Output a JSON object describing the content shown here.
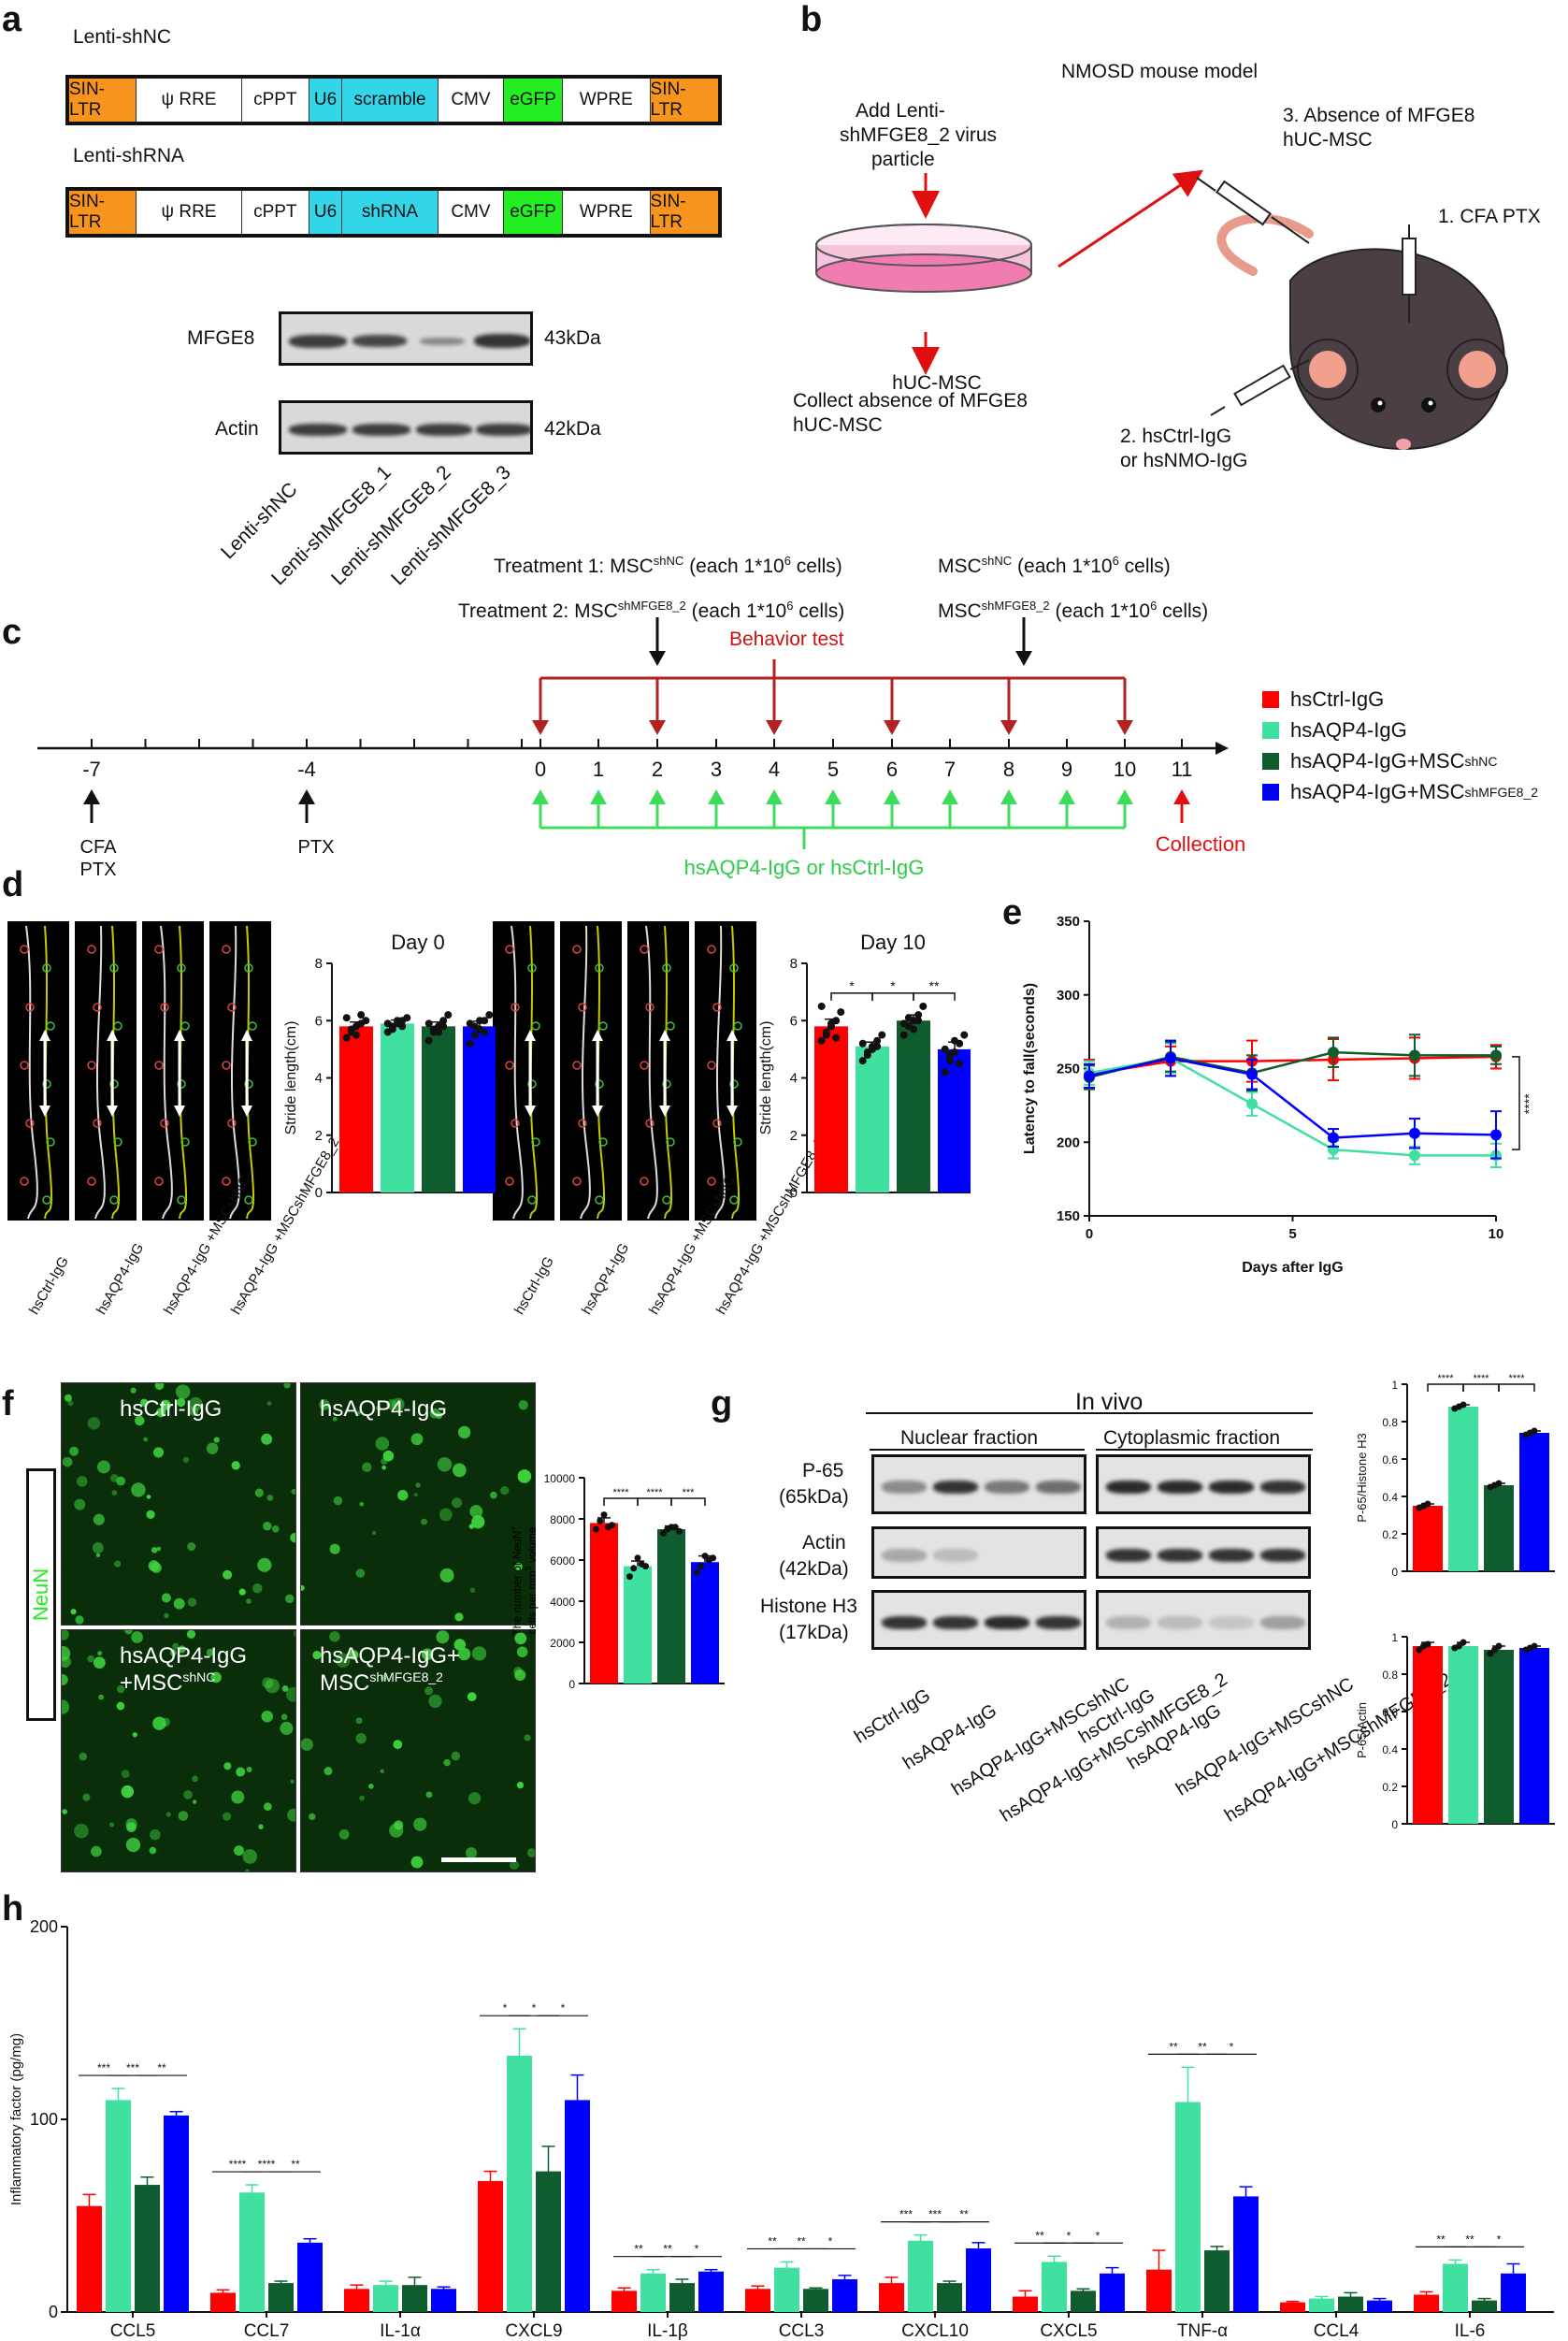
{
  "panels": {
    "a": "a",
    "b": "b",
    "c": "c",
    "d": "d",
    "e": "e",
    "f": "f",
    "g": "g",
    "h": "h"
  },
  "colors": {
    "ctrl": "#ff0000",
    "aqp4": "#40e0a0",
    "msc_nc": "#0f5c2e",
    "msc_sh": "#0000ff",
    "orange": "#f7941d",
    "cyan": "#33d6e8",
    "green": "#22ee22"
  },
  "panel_a": {
    "construct1_title": "Lenti-shNC",
    "construct2_title": "Lenti-shRNA",
    "construct1": [
      "SIN-LTR",
      "ψ RRE",
      "cPPT",
      "U6",
      "scramble",
      "CMV",
      "eGFP",
      "WPRE",
      "SIN-LTR"
    ],
    "construct2": [
      "SIN-LTR",
      "ψ RRE",
      "cPPT",
      "U6",
      "shRNA",
      "CMV",
      "eGFP",
      "WPRE",
      "SIN-LTR"
    ],
    "blot1_label": "MFGE8",
    "blot1_size": "43kDa",
    "blot2_label": "Actin",
    "blot2_size": "42kDa",
    "lanes": [
      "Lenti-shNC",
      "Lenti-shMFGE8_1",
      "Lenti-shMFGE8_2",
      "Lenti-shMFGE8_3"
    ]
  },
  "panel_b": {
    "model_title": "NMOSD mouse model",
    "add_text_1": "Add Lenti-",
    "add_text_2": "shMFGE8_2  virus",
    "add_text_3": "particle",
    "dish_label": "hUC-MSC",
    "collect_1": "Collect absence of MFGE8",
    "collect_2": "hUC-MSC",
    "step3_1": "3. Absence of MFGE8",
    "step3_2": "hUC-MSC",
    "step1": "1. CFA PTX",
    "step2_1": "2. hsCtrl-IgG",
    "step2_2": "or hsNMO-IgG"
  },
  "panel_c": {
    "treat1": "Treatment 1: MSC",
    "treat1_sup": "shNC",
    "treat1_tail": " (each 1*10",
    "treat1_exp": "6",
    "treat1_end": " cells)",
    "treat2": "Treatment 2: MSC",
    "treat2_sup": "shMFGE8_2",
    "treat2_tail": " (each 1*10",
    "treat2_exp": "6",
    "treat2_end": " cells)",
    "right1": "MSC",
    "right1_sup": "shNC",
    "right1_tail": " (each 1*10",
    "right1_exp": "6",
    "right1_end": " cells)",
    "right2": "MSC",
    "right2_sup": "shMFGE8_2",
    "right2_tail": " (each 1*10",
    "right2_exp": "6",
    "right2_end": " cells)",
    "behavior": "Behavior test",
    "ticks": [
      "-7",
      "-4",
      "0",
      "1",
      "2",
      "3",
      "4",
      "5",
      "6",
      "7",
      "8",
      "9",
      "10",
      "11"
    ],
    "cfa1": "CFA",
    "cfa2": "PTX",
    "ptx": "PTX",
    "injection": "hsAQP4-IgG or hsCtrl-IgG",
    "collection": "Collection",
    "legend": [
      {
        "name": "hsCtrl-IgG",
        "sup": "",
        "color": "#ff0000"
      },
      {
        "name": "hsAQP4-IgG",
        "sup": "",
        "color": "#40e0a0"
      },
      {
        "name": "hsAQP4-IgG+MSC",
        "sup": "shNC",
        "color": "#0f5c2e"
      },
      {
        "name": "hsAQP4-IgG+MSC",
        "sup": "shMFGE8_2",
        "color": "#0000ff"
      }
    ]
  },
  "panel_d": {
    "day0_title": "Day 0",
    "day10_title": "Day 10",
    "ylabel": "Stride length(cm)",
    "track_labels": [
      "hsCtrl-IgG",
      "hsAQP4-IgG",
      "hsAQP4-IgG +MSCshNC",
      "hsAQP4-IgG +MSCshMFGE8_2"
    ],
    "sig_day10": [
      "*",
      "*",
      "**"
    ]
  },
  "panel_f": {
    "stain": "NeuN",
    "quadrants": [
      "hsCtrl-IgG",
      "hsAQP4-IgG",
      "hsAQP4-IgG",
      "hsAQP4-IgG+"
    ],
    "quad_sub": [
      "",
      "",
      "+MSC",
      "MSC"
    ],
    "quad_sup": [
      "",
      "",
      "shNC",
      "shMFGE8_2"
    ],
    "ylabel1": "The number of NeuN",
    "ylabel_sup": "+",
    "ylabel2": "cells per mm",
    "ylabel_exp": "3",
    "ylabel3": " volume",
    "sig": [
      "****",
      "****",
      "***"
    ]
  },
  "panel_g": {
    "title": "In vivo",
    "nuclear": "Nuclear fraction",
    "cyto": "Cytoplasmic fraction",
    "rows": [
      {
        "name": "P-65",
        "size": "(65kDa)"
      },
      {
        "name": "Actin",
        "size": "(42kDa)"
      },
      {
        "name": "Histone H3",
        "size": "(17kDa)"
      }
    ],
    "lanes": [
      "hsCtrl-IgG",
      "hsAQP4-IgG",
      "hsAQP4-IgG+MSCshNC",
      "hsAQP4-IgG+MSCshMFGE8_2"
    ],
    "ylabel_top": "P-65/Histone H3",
    "ylabel_bottom": "P-65/Actin",
    "sig": [
      "****",
      "****",
      "****"
    ]
  },
  "chart_data": [
    {
      "id": "d_day0",
      "type": "bar",
      "categories": [
        "hsCtrl-IgG",
        "hsAQP4-IgG",
        "hsAQP4-IgG+MSCshNC",
        "hsAQP4-IgG+MSCshMFGE8_2"
      ],
      "values": [
        5.8,
        5.9,
        5.8,
        5.8
      ],
      "errors": [
        0.15,
        0.12,
        0.15,
        0.18
      ],
      "points": [
        [
          5.4,
          5.6,
          5.8,
          5.9,
          6.0,
          6.1,
          5.7,
          5.5,
          6.2
        ],
        [
          5.6,
          5.8,
          5.9,
          6.0,
          6.1,
          5.9,
          5.7,
          6.0,
          5.8
        ],
        [
          5.3,
          5.6,
          5.8,
          6.0,
          6.2,
          5.9,
          5.7,
          5.6,
          5.8
        ],
        [
          5.2,
          5.5,
          5.7,
          6.0,
          6.2,
          5.9,
          5.8,
          6.0,
          5.6
        ]
      ],
      "title": "Day 0",
      "xlabel": "",
      "ylabel": "Stride length(cm)",
      "ylim": [
        0,
        8
      ],
      "yticks": [
        0,
        2,
        4,
        6,
        8
      ]
    },
    {
      "id": "d_day10",
      "type": "bar",
      "categories": [
        "hsCtrl-IgG",
        "hsAQP4-IgG",
        "hsAQP4-IgG+MSCshNC",
        "hsAQP4-IgG+MSCshMFGE8_2"
      ],
      "values": [
        5.8,
        5.1,
        6.0,
        5.0
      ],
      "errors": [
        0.25,
        0.15,
        0.2,
        0.25
      ],
      "points": [
        [
          5.3,
          5.5,
          5.8,
          6.0,
          6.3,
          6.5,
          5.6,
          5.9,
          5.4
        ],
        [
          4.6,
          4.9,
          5.1,
          5.3,
          5.5,
          5.2,
          4.8,
          5.0,
          5.1
        ],
        [
          5.5,
          5.8,
          6.0,
          6.2,
          6.5,
          5.9,
          6.1,
          5.7,
          6.0
        ],
        [
          4.2,
          4.6,
          4.9,
          5.2,
          5.5,
          5.0,
          4.8,
          5.3,
          4.5
        ]
      ],
      "title": "Day 10",
      "xlabel": "",
      "ylabel": "Stride length(cm)",
      "ylim": [
        0,
        8
      ],
      "yticks": [
        0,
        2,
        4,
        6,
        8
      ],
      "significance": [
        {
          "from": 0,
          "to": 1,
          "label": "*"
        },
        {
          "from": 1,
          "to": 2,
          "label": "*"
        },
        {
          "from": 2,
          "to": 3,
          "label": "**"
        }
      ]
    },
    {
      "id": "e",
      "type": "line",
      "x": [
        0,
        2,
        4,
        6,
        8,
        10
      ],
      "series": [
        {
          "name": "hsCtrl-IgG",
          "color": "#ff0000",
          "values": [
            246,
            255,
            255,
            256,
            257,
            258
          ],
          "errors": [
            10,
            10,
            14,
            14,
            14,
            8
          ]
        },
        {
          "name": "hsAQP4-IgG",
          "color": "#40e0a0",
          "values": [
            247,
            257,
            226,
            195,
            191,
            191
          ],
          "errors": [
            8,
            10,
            8,
            6,
            6,
            8
          ]
        },
        {
          "name": "hsAQP4-IgG+MSCshNC",
          "color": "#0f5c2e",
          "values": [
            244,
            258,
            247,
            261,
            259,
            259
          ],
          "errors": [
            8,
            10,
            12,
            10,
            14,
            6
          ]
        },
        {
          "name": "hsAQP4-IgG+MSCshMFGE8_2",
          "color": "#0000ff",
          "values": [
            245,
            257,
            246,
            203,
            206,
            205
          ],
          "errors": [
            8,
            12,
            10,
            6,
            10,
            16
          ]
        }
      ],
      "xlabel": "Days after IgG",
      "ylabel": "Latency to fall(seconds)",
      "xlim": [
        0,
        10
      ],
      "xticks": [
        0,
        5,
        10
      ],
      "ylim": [
        150,
        350
      ],
      "yticks": [
        150,
        200,
        250,
        300,
        350
      ],
      "annotation": "****"
    },
    {
      "id": "f",
      "type": "bar",
      "categories": [
        "hsCtrl-IgG",
        "hsAQP4-IgG",
        "hsAQP4-IgG+MSCshNC",
        "hsAQP4-IgG+MSCshMFGE8_2"
      ],
      "values": [
        7800,
        5700,
        7500,
        5900
      ],
      "errors": [
        250,
        250,
        150,
        300
      ],
      "points": [
        [
          7500,
          7900,
          8200,
          7600,
          7700
        ],
        [
          5200,
          5600,
          6100,
          5800,
          5700
        ],
        [
          7300,
          7500,
          7600,
          7600,
          7400
        ],
        [
          5400,
          5700,
          6200,
          6000,
          6100
        ]
      ],
      "ylabel": "The number of NeuN+ cells per mm3 volume",
      "ylim": [
        0,
        10000
      ],
      "yticks": [
        0,
        2000,
        4000,
        6000,
        8000,
        10000
      ],
      "significance": [
        {
          "from": 0,
          "to": 1,
          "label": "****"
        },
        {
          "from": 1,
          "to": 2,
          "label": "****"
        },
        {
          "from": 2,
          "to": 3,
          "label": "***"
        }
      ]
    },
    {
      "id": "g_top",
      "type": "bar",
      "categories": [
        "hsCtrl-IgG",
        "hsAQP4-IgG",
        "hsAQP4-IgG+MSCshNC",
        "hsAQP4-IgG+MSCshMFGE8_2"
      ],
      "values": [
        0.35,
        0.88,
        0.46,
        0.74
      ],
      "errors": [
        0.01,
        0.01,
        0.01,
        0.01
      ],
      "points": [
        [
          0.34,
          0.35,
          0.36
        ],
        [
          0.87,
          0.88,
          0.89
        ],
        [
          0.45,
          0.46,
          0.47
        ],
        [
          0.73,
          0.74,
          0.75
        ]
      ],
      "ylabel": "P-65/Histone H3",
      "ylim": [
        0,
        1.0
      ],
      "yticks": [
        0,
        0.2,
        0.4,
        0.6,
        0.8,
        1.0
      ],
      "significance": [
        {
          "from": 0,
          "to": 1,
          "label": "****"
        },
        {
          "from": 1,
          "to": 2,
          "label": "****"
        },
        {
          "from": 2,
          "to": 3,
          "label": "****"
        }
      ]
    },
    {
      "id": "g_bottom",
      "type": "bar",
      "categories": [
        "hsCtrl-IgG",
        "hsAQP4-IgG",
        "hsAQP4-IgG+MSCshNC",
        "hsAQP4-IgG+MSCshMFGE8_2"
      ],
      "values": [
        0.95,
        0.95,
        0.93,
        0.94
      ],
      "errors": [
        0.02,
        0.02,
        0.02,
        0.01
      ],
      "points": [
        [
          0.93,
          0.95,
          0.96
        ],
        [
          0.94,
          0.95,
          0.97
        ],
        [
          0.91,
          0.93,
          0.95
        ],
        [
          0.93,
          0.94,
          0.95
        ]
      ],
      "ylabel": "P-65/Actin",
      "ylim": [
        0,
        1.0
      ],
      "yticks": [
        0,
        0.2,
        0.4,
        0.6,
        0.8,
        1.0
      ]
    },
    {
      "id": "h",
      "type": "bar",
      "categories": [
        "CCL5",
        "CCL7",
        "IL-1α",
        "CXCL9",
        "IL-1β",
        "CCL3",
        "CXCL10",
        "CXCL5",
        "TNF-α",
        "CCL4",
        "IL-6"
      ],
      "series": [
        {
          "name": "hsCtrl-IgG",
          "color": "#ff0000",
          "values": [
            55,
            10,
            12,
            68,
            11,
            12,
            15,
            8,
            22,
            5,
            9
          ],
          "errors": [
            6,
            1.5,
            2,
            5,
            1.5,
            1.5,
            3,
            3,
            10,
            0.5,
            1.5
          ]
        },
        {
          "name": "hsAQP4-IgG",
          "color": "#40e0a0",
          "values": [
            110,
            62,
            14,
            133,
            20,
            23,
            37,
            26,
            109,
            7,
            25
          ],
          "errors": [
            6,
            4,
            2,
            14,
            2,
            3,
            3,
            3,
            18,
            1,
            2
          ]
        },
        {
          "name": "hsAQP4-IgG+MSCshNC",
          "color": "#0f5c2e",
          "values": [
            66,
            15,
            14,
            73,
            15,
            12,
            15,
            11,
            32,
            8,
            6
          ],
          "errors": [
            4,
            1,
            4,
            13,
            2,
            0.5,
            1,
            1,
            2,
            2,
            1
          ]
        },
        {
          "name": "hsAQP4-IgG+MSCshMFGE8_2",
          "color": "#0000ff",
          "values": [
            102,
            36,
            12,
            110,
            21,
            17,
            33,
            20,
            60,
            6,
            20
          ],
          "errors": [
            2,
            2,
            1,
            13,
            1,
            2,
            3,
            3,
            5,
            1,
            5
          ]
        }
      ],
      "significance": [
        [
          "***",
          "***",
          "**"
        ],
        [
          "****",
          "****",
          "**"
        ],
        [],
        [
          "*",
          "*",
          "*"
        ],
        [
          "**",
          "**",
          "*"
        ],
        [
          "**",
          "**",
          "*"
        ],
        [
          "***",
          "***",
          "**"
        ],
        [
          "**",
          "*",
          "*"
        ],
        [
          "**",
          "**",
          "*"
        ],
        [],
        [
          "**",
          "**",
          "*"
        ]
      ],
      "ylabel": "Inflammatory factor (pg/mg)",
      "ylim": [
        0,
        200
      ],
      "yticks": [
        0,
        100,
        200
      ]
    }
  ]
}
